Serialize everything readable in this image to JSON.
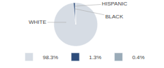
{
  "chart_data": {
    "type": "pie",
    "categories": [
      "WHITE",
      "HISPANIC",
      "BLACK"
    ],
    "values": [
      98.3,
      1.3,
      0.4
    ],
    "value_labels": [
      "98.3%",
      "1.3%",
      "0.4%"
    ],
    "colors": [
      "#d6dce4",
      "#2e4d7b",
      "#9aabb8"
    ],
    "legend": "bottom"
  }
}
